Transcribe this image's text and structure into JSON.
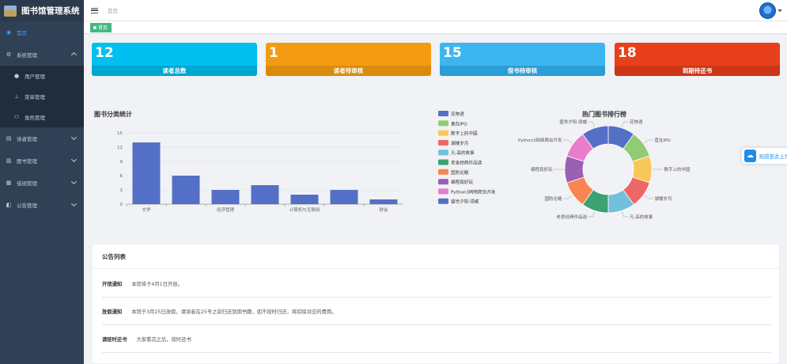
{
  "app": {
    "title": "图书馆管理系统"
  },
  "topbar": {
    "breadcrumb": "首页"
  },
  "tags": {
    "home": "首页"
  },
  "sidebar": {
    "items": [
      {
        "label": "首页",
        "icon": "dashboard-icon"
      },
      {
        "label": "系统管理",
        "icon": "gear-icon"
      },
      {
        "label": "用户管理",
        "icon": "user-icon"
      },
      {
        "label": "菜单管理",
        "icon": "tree-icon"
      },
      {
        "label": "角色管理",
        "icon": "peoples-icon"
      },
      {
        "label": "读者管理",
        "icon": "reader-icon"
      },
      {
        "label": "图书管理",
        "icon": "book-icon"
      },
      {
        "label": "借阅管理",
        "icon": "borrow-icon"
      },
      {
        "label": "公告管理",
        "icon": "notice-icon"
      }
    ]
  },
  "stats": [
    {
      "value": "12",
      "label": "读者总数",
      "color": "#00c0ef",
      "band": "#00a7d0"
    },
    {
      "value": "1",
      "label": "读者待审核",
      "color": "#f39c12",
      "band": "#db8b0b"
    },
    {
      "value": "15",
      "label": "借书待审核",
      "color": "#3db6f0",
      "band": "#2a9ed6"
    },
    {
      "value": "18",
      "label": "到期待还书",
      "color": "#e8401c",
      "band": "#cc3515"
    }
  ],
  "bar_chart": {
    "title": "图书分类统计"
  },
  "pie_chart": {
    "title": "热门图书排行榜"
  },
  "chart_data": [
    {
      "type": "bar",
      "title": "图书分类统计",
      "categories": [
        "文学",
        "",
        "经济管理",
        "",
        "计算机与互联网",
        "",
        "财会"
      ],
      "values": [
        13,
        6,
        3,
        4,
        2,
        3,
        1
      ],
      "ylim": [
        0,
        15
      ],
      "yticks": [
        0,
        3,
        6,
        9,
        12,
        15
      ],
      "grid": true,
      "color": "#5470c6"
    },
    {
      "type": "pie",
      "title": "热门图书排行榜",
      "donut": true,
      "labels": [
        "花物语",
        "直在IPO",
        "数字上的中国",
        "湖楼岁月",
        "凡·高的故事",
        "老舍经典作品选",
        "国防论略",
        "编程真好玩",
        "Python3网络爬虫开发",
        "盛世夕阳·颂威"
      ],
      "values": [
        1,
        1,
        1,
        1,
        1,
        1,
        1,
        1,
        1,
        1
      ],
      "colors": [
        "#5470c6",
        "#91cc75",
        "#fac858",
        "#ee6666",
        "#73c0de",
        "#3ba272",
        "#fc8452",
        "#9a60b4",
        "#ea7ccc",
        "#5470c6"
      ],
      "legend_position": "left"
    }
  ],
  "notices": {
    "title": "公告列表",
    "rows": [
      {
        "title": "开馆通知",
        "content": "本馆将于4月1日开放。"
      },
      {
        "title": "放假通知",
        "content": "本馆于3月25日放假，请读者在25号之前归还到期书籍，如不按时归还，将扣除对应的费用。"
      },
      {
        "title": "请按时还书",
        "content": "大家看完之后，按时还书"
      }
    ]
  },
  "float_button": {
    "label": "宪隔至此上传"
  }
}
